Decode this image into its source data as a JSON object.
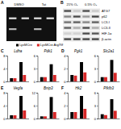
{
  "blots": [
    {
      "label": "A",
      "conditions": [
        "DMSO",
        "Tat"
      ]
    },
    {
      "label": "B",
      "conditions": [
        "21% O₂",
        "0.5% O₂"
      ],
      "rows": [
        "ATG7",
        "p62",
        "LC3-I",
        "LC3-II",
        "HIF-1α",
        "β-actin"
      ]
    }
  ],
  "chart_data": [
    {
      "type": "bar",
      "title": "Ldha",
      "annotations": [
        "C"
      ],
      "legend": "top",
      "categories": [
        null,
        null
      ],
      "series": [
        {
          "name": "LysMCre",
          "color": "#000000",
          "values": [
            1,
            6
          ]
        },
        {
          "name": "LysMCre Atg7f/f",
          "color": "#d62728",
          "values": [
            1,
            2
          ]
        }
      ],
      "ylim": [
        0,
        8
      ],
      "yticks": [
        0,
        4,
        8
      ]
    },
    {
      "type": "bar",
      "title": "Pdk1",
      "categories": [
        null,
        null
      ],
      "series": [
        {
          "color": "#000000",
          "values": [
            1,
            4
          ]
        },
        {
          "color": "#d62728",
          "values": [
            1,
            1.5
          ]
        }
      ],
      "ylim": [
        0,
        6
      ],
      "yticks": [
        0,
        3,
        6
      ]
    },
    {
      "type": "bar",
      "title": "Pgk1",
      "annotations": [
        "D"
      ],
      "categories": [
        null,
        null
      ],
      "series": [
        {
          "color": "#000000",
          "values": [
            1,
            3
          ]
        },
        {
          "color": "#d62728",
          "values": [
            0.9,
            1.4
          ]
        }
      ],
      "ylim": [
        0,
        4
      ],
      "yticks": [
        0,
        2,
        4
      ]
    },
    {
      "type": "bar",
      "title": "Slc2a1",
      "categories": [
        null,
        null
      ],
      "series": [
        {
          "color": "#000000",
          "values": [
            1,
            5
          ]
        },
        {
          "color": "#d62728",
          "values": [
            1,
            2
          ]
        }
      ],
      "ylim": [
        0,
        6
      ],
      "yticks": [
        0,
        3,
        6
      ]
    },
    {
      "type": "bar",
      "title": "Vegfa",
      "annotations": [
        "E"
      ],
      "categories": [
        null,
        null
      ],
      "series": [
        {
          "color": "#000000",
          "values": [
            1,
            7
          ]
        },
        {
          "color": "#d62728",
          "values": [
            1,
            2.5
          ]
        }
      ],
      "ylim": [
        0,
        8
      ],
      "yticks": [
        0,
        4,
        8
      ]
    },
    {
      "type": "bar",
      "title": "Bnip3",
      "categories": [
        null,
        null
      ],
      "series": [
        {
          "color": "#000000",
          "values": [
            1,
            10
          ]
        },
        {
          "color": "#d62728",
          "values": [
            1,
            3
          ]
        }
      ],
      "ylim": [
        0,
        12
      ],
      "yticks": [
        0,
        6,
        12
      ]
    },
    {
      "type": "bar",
      "title": "Hk2",
      "annotations": [
        "F"
      ],
      "categories": [
        null,
        null
      ],
      "series": [
        {
          "color": "#000000",
          "values": [
            1,
            3.5
          ]
        },
        {
          "color": "#d62728",
          "values": [
            1,
            1.5
          ]
        }
      ],
      "ylim": [
        0,
        4
      ],
      "yticks": [
        0,
        2,
        4
      ]
    },
    {
      "type": "bar",
      "title": "Pfkfb3",
      "categories": [
        null,
        null
      ],
      "series": [
        {
          "color": "#000000",
          "values": [
            1,
            4.5
          ]
        },
        {
          "color": "#d62728",
          "values": [
            0.8,
            1.8
          ]
        }
      ],
      "ylim": [
        0,
        6
      ],
      "yticks": [
        0,
        3,
        6
      ]
    }
  ]
}
